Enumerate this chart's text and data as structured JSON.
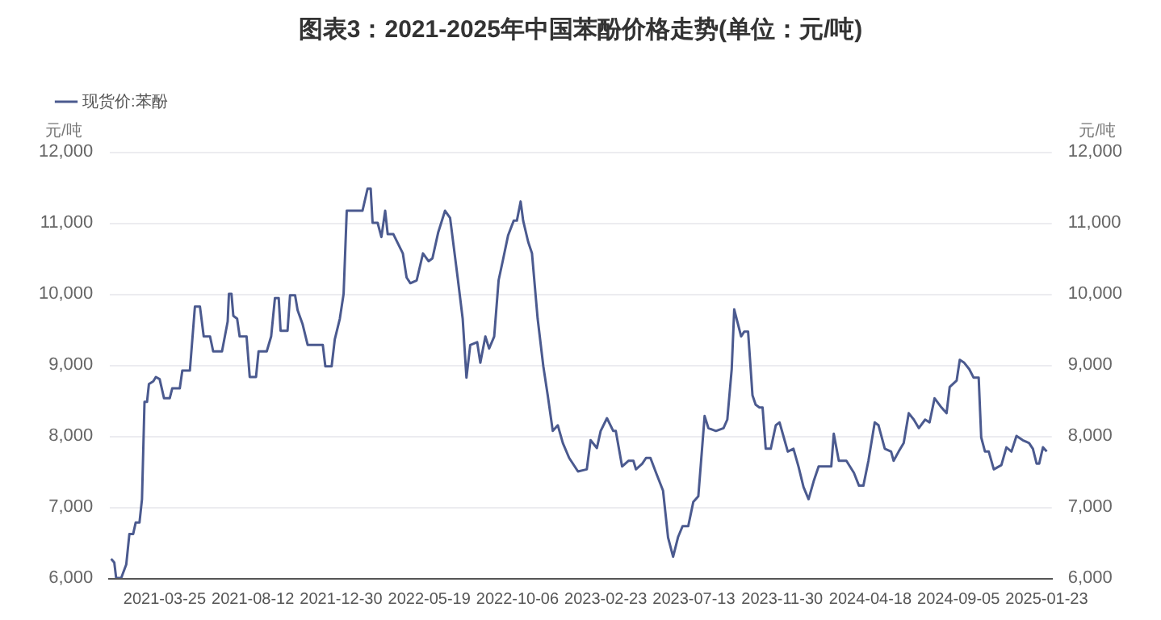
{
  "chart_data": {
    "type": "line",
    "title": "图表3：2021-2025年中国苯酚价格走势(单位：元/吨)",
    "ylabel": "元/吨",
    "y2label": "元/吨",
    "x": [
      "2020-12-30",
      "2021-01-04",
      "2021-01-07",
      "2021-01-15",
      "2021-01-23",
      "2021-01-28",
      "2021-02-03",
      "2021-02-07",
      "2021-02-13",
      "2021-02-17",
      "2021-02-21",
      "2021-02-25",
      "2021-02-28",
      "2021-03-07",
      "2021-03-11",
      "2021-03-17",
      "2021-03-24",
      "2021-04-02",
      "2021-04-06",
      "2021-04-18",
      "2021-04-22",
      "2021-05-04",
      "2021-05-12",
      "2021-05-20",
      "2021-05-26",
      "2021-06-05",
      "2021-06-10",
      "2021-06-24",
      "2021-07-03",
      "2021-07-05",
      "2021-07-09",
      "2021-07-12",
      "2021-07-18",
      "2021-07-22",
      "2021-08-02",
      "2021-08-07",
      "2021-08-17",
      "2021-08-21",
      "2021-09-03",
      "2021-09-10",
      "2021-09-16",
      "2021-09-22",
      "2021-09-25",
      "2021-10-06",
      "2021-10-10",
      "2021-10-18",
      "2021-10-22",
      "2021-10-30",
      "2021-11-07",
      "2021-12-01",
      "2021-12-05",
      "2021-12-15",
      "2021-12-20",
      "2021-12-28",
      "2022-01-03",
      "2022-01-08",
      "2022-02-02",
      "2022-02-10",
      "2022-02-15",
      "2022-02-18",
      "2022-02-26",
      "2022-03-04",
      "2022-03-10",
      "2022-03-14",
      "2022-03-23",
      "2022-04-07",
      "2022-04-13",
      "2022-04-19",
      "2022-04-29",
      "2022-05-09",
      "2022-05-18",
      "2022-05-24",
      "2022-06-02",
      "2022-06-13",
      "2022-06-21",
      "2022-07-03",
      "2022-07-11",
      "2022-07-17",
      "2022-07-23",
      "2022-08-03",
      "2022-08-08",
      "2022-08-16",
      "2022-08-22",
      "2022-08-30",
      "2022-09-06",
      "2022-09-13",
      "2022-09-21",
      "2022-09-30",
      "2022-10-05",
      "2022-10-11",
      "2022-10-15",
      "2022-10-23",
      "2022-10-29",
      "2022-11-07",
      "2022-11-16",
      "2022-11-23",
      "2022-12-01",
      "2022-12-09",
      "2022-12-17",
      "2022-12-27",
      "2023-01-10",
      "2023-01-24",
      "2023-01-30",
      "2023-02-09",
      "2023-02-15",
      "2023-02-25",
      "2023-03-07",
      "2023-03-11",
      "2023-03-21",
      "2023-03-31",
      "2023-04-08",
      "2023-04-12",
      "2023-04-22",
      "2023-04-28",
      "2023-05-05",
      "2023-05-14",
      "2023-05-25",
      "2023-06-02",
      "2023-06-10",
      "2023-06-18",
      "2023-06-25",
      "2023-07-04",
      "2023-07-12",
      "2023-07-20",
      "2023-07-30",
      "2023-08-05",
      "2023-08-17",
      "2023-08-29",
      "2023-09-04",
      "2023-09-11",
      "2023-09-15",
      "2023-09-26",
      "2023-10-01",
      "2023-10-07",
      "2023-10-14",
      "2023-10-19",
      "2023-10-25",
      "2023-10-30",
      "2023-11-04",
      "2023-11-12",
      "2023-11-20",
      "2023-11-26",
      "2023-12-02",
      "2023-12-09",
      "2023-12-18",
      "2023-12-26",
      "2024-01-03",
      "2024-01-11",
      "2024-01-19",
      "2024-01-27",
      "2024-02-16",
      "2024-02-20",
      "2024-02-28",
      "2024-03-11",
      "2024-03-23",
      "2024-03-31",
      "2024-04-07",
      "2024-04-15",
      "2024-04-25",
      "2024-05-01",
      "2024-05-11",
      "2024-05-21",
      "2024-05-25",
      "2024-06-02",
      "2024-06-10",
      "2024-06-18",
      "2024-06-26",
      "2024-07-04",
      "2024-07-14",
      "2024-07-21",
      "2024-07-29",
      "2024-08-09",
      "2024-08-17",
      "2024-08-22",
      "2024-09-02",
      "2024-09-07",
      "2024-09-14",
      "2024-09-22",
      "2024-09-29",
      "2024-10-07",
      "2024-10-11",
      "2024-10-17",
      "2024-10-23",
      "2024-10-31",
      "2024-11-12",
      "2024-11-20",
      "2024-11-28",
      "2024-12-06",
      "2024-12-16",
      "2024-12-26",
      "2025-01-01",
      "2025-01-07",
      "2025-01-11",
      "2025-01-17",
      "2025-01-23"
    ],
    "series": [
      {
        "name": "现货价:苯酚",
        "color": "#4b5a8f",
        "values": [
          6270,
          6220,
          6000,
          6000,
          6190,
          6620,
          6620,
          6780,
          6780,
          7110,
          8480,
          8480,
          8730,
          8770,
          8830,
          8800,
          8530,
          8530,
          8670,
          8670,
          8920,
          8920,
          9820,
          9820,
          9400,
          9400,
          9190,
          9190,
          9610,
          10000,
          10000,
          9690,
          9650,
          9400,
          9400,
          8830,
          8830,
          9190,
          9190,
          9400,
          9940,
          9940,
          9480,
          9480,
          9980,
          9980,
          9770,
          9570,
          9280,
          9280,
          8980,
          8980,
          9360,
          9650,
          10000,
          11170,
          11170,
          11480,
          11480,
          11000,
          11000,
          10800,
          11170,
          10840,
          10840,
          10570,
          10230,
          10150,
          10190,
          10570,
          10460,
          10500,
          10860,
          11170,
          11070,
          10230,
          9650,
          8820,
          9280,
          9320,
          9030,
          9400,
          9230,
          9400,
          10190,
          10480,
          10820,
          11030,
          11030,
          11300,
          11030,
          10730,
          10570,
          9650,
          8980,
          8570,
          8070,
          8150,
          7900,
          7690,
          7500,
          7530,
          7940,
          7830,
          8070,
          8250,
          8070,
          8070,
          7570,
          7650,
          7650,
          7530,
          7610,
          7690,
          7690,
          7480,
          7230,
          6570,
          6300,
          6580,
          6730,
          6730,
          7070,
          7150,
          8280,
          8110,
          8070,
          8110,
          8230,
          8940,
          9780,
          9400,
          9470,
          9470,
          8570,
          8440,
          8400,
          8400,
          7820,
          7820,
          8150,
          8190,
          8000,
          7780,
          7820,
          7570,
          7280,
          7110,
          7360,
          7570,
          7570,
          8030,
          7650,
          7650,
          7480,
          7300,
          7300,
          7650,
          8190,
          8150,
          7820,
          7780,
          7650,
          7780,
          7900,
          8320,
          8230,
          8110,
          8230,
          8190,
          8530,
          8400,
          8320,
          8690,
          8780,
          9070,
          9030,
          8940,
          8820,
          8820,
          7980,
          7780,
          7780,
          7530,
          7590,
          7840,
          7780,
          8000,
          7940,
          7900,
          7820,
          7610,
          7610,
          7840,
          7780
        ]
      }
    ],
    "xlim": [
      "2020-12-27",
      "2025-01-31"
    ],
    "xticks": [
      "2021-03-25",
      "2021-08-12",
      "2021-12-30",
      "2022-05-19",
      "2022-10-06",
      "2023-02-23",
      "2023-07-13",
      "2023-11-30",
      "2024-04-18",
      "2024-09-05",
      "2025-01-23"
    ],
    "ylim": [
      6000,
      12000
    ],
    "yticks": [
      {
        "value": 6000,
        "label": "6,000"
      },
      {
        "value": 7000,
        "label": "7,000"
      },
      {
        "value": 8000,
        "label": "8,000"
      },
      {
        "value": 9000,
        "label": "9,000"
      },
      {
        "value": 10000,
        "label": "10,000"
      },
      {
        "value": 11000,
        "label": "11,000"
      },
      {
        "value": 12000,
        "label": "12,000"
      }
    ],
    "y2lim": [
      6000,
      12000
    ],
    "y2ticks": [
      {
        "value": 6000,
        "label": "6,000"
      },
      {
        "value": 7000,
        "label": "7,000"
      },
      {
        "value": 8000,
        "label": "8,000"
      },
      {
        "value": 9000,
        "label": "9,000"
      },
      {
        "value": 10000,
        "label": "10,000"
      },
      {
        "value": 11000,
        "label": "11,000"
      },
      {
        "value": 12000,
        "label": "12,000"
      }
    ],
    "grid": "y",
    "legend": "top left",
    "marker": "none",
    "line_style": "solid"
  }
}
